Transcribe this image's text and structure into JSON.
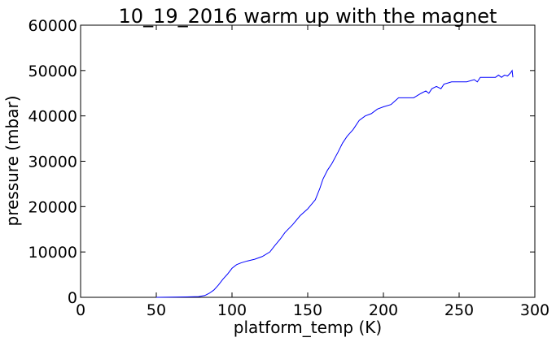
{
  "chart_data": {
    "type": "line",
    "title": "10_19_2016 warm up with the magnet",
    "xlabel": "platform_temp (K)",
    "ylabel": "pressure (mbar)",
    "xlim": [
      0,
      300
    ],
    "ylim": [
      0,
      60000
    ],
    "xticks": [
      0,
      50,
      100,
      150,
      200,
      250,
      300
    ],
    "yticks": [
      0,
      10000,
      20000,
      30000,
      40000,
      50000,
      60000
    ],
    "grid": false,
    "series_color": "#0000ff",
    "x": [
      50,
      60,
      70,
      78,
      82,
      85,
      88,
      91,
      94,
      97,
      100,
      103,
      106,
      110,
      115,
      120,
      125,
      128,
      132,
      135,
      140,
      145,
      150,
      155,
      158,
      160,
      163,
      166,
      170,
      173,
      176,
      180,
      184,
      188,
      192,
      196,
      200,
      205,
      210,
      215,
      220,
      225,
      228,
      230,
      232,
      235,
      238,
      240,
      242,
      245,
      250,
      255,
      260,
      262,
      264,
      266,
      270,
      274,
      276,
      278,
      280,
      282,
      284,
      285,
      285.5
    ],
    "y": [
      0,
      40,
      80,
      150,
      400,
      900,
      1600,
      2700,
      4000,
      5100,
      6400,
      7200,
      7600,
      8000,
      8400,
      9000,
      10000,
      11300,
      12900,
      14300,
      16000,
      18000,
      19500,
      21500,
      24000,
      26000,
      28000,
      29500,
      32000,
      34000,
      35500,
      37000,
      39000,
      40000,
      40500,
      41500,
      42000,
      42500,
      44000,
      44000,
      44000,
      45000,
      45500,
      45000,
      46000,
      46500,
      46000,
      47000,
      47200,
      47500,
      47500,
      47500,
      48000,
      47500,
      48500,
      48500,
      48500,
      48500,
      49000,
      48500,
      49000,
      48800,
      49500,
      50000,
      48500
    ]
  }
}
